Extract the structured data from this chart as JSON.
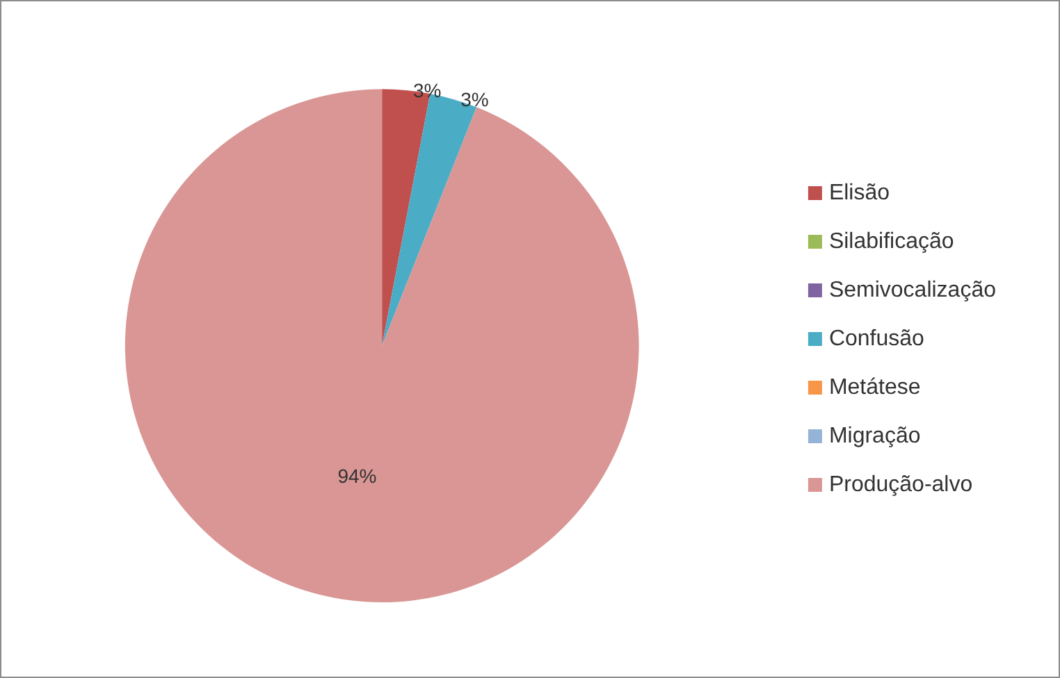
{
  "chart_data": {
    "type": "pie",
    "categories": [
      "Elisão",
      "Silabificação",
      "Semivocalização",
      "Confusão",
      "Metátese",
      "Migração",
      "Produção-alvo"
    ],
    "values": [
      3,
      0,
      0,
      3,
      0,
      0,
      94
    ],
    "colors": [
      "#c0504d",
      "#9bbb59",
      "#8064a2",
      "#4bacc6",
      "#f79646",
      "#95b3d7",
      "#d99694"
    ],
    "value_labels": [
      "3%",
      null,
      null,
      "3%",
      null,
      null,
      "94%"
    ],
    "legend": "right"
  }
}
